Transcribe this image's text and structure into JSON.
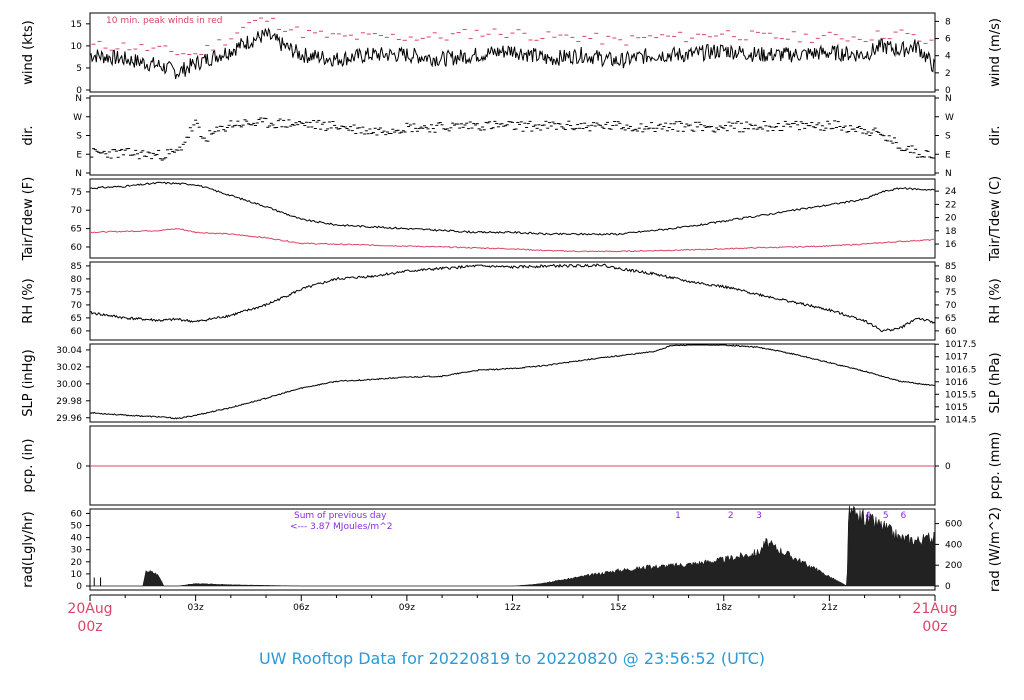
{
  "colors": {
    "line": "#000000",
    "peak": "#dd4466",
    "dew": "#dd4466",
    "date": "#dd4466",
    "footer": "#2b9ad6",
    "annot": "#8a2be2"
  },
  "chart_data": [
    {
      "type": "line",
      "panel": "wind",
      "ylabel": "wind (kts)",
      "ylabel_right": "wind (m/s)",
      "ylim": [
        0,
        17
      ],
      "yticks": [
        0,
        5,
        10,
        15
      ],
      "yticks_right": [
        "0",
        "2",
        "4",
        "6",
        "8"
      ],
      "annotation": "10 min. peak winds in red",
      "series": [
        {
          "name": "wind",
          "color": "line",
          "x": [
            0,
            1,
            2,
            2.5,
            3,
            4,
            4.5,
            5,
            5.5,
            6,
            7,
            8,
            9,
            10,
            11,
            12,
            13,
            14,
            15,
            16,
            17,
            18,
            19,
            20,
            21,
            22,
            22.5,
            23,
            23.5,
            24
          ],
          "y": [
            8,
            7,
            5.5,
            4,
            6,
            9,
            11,
            12.5,
            10,
            8,
            7,
            8,
            8,
            7,
            8,
            9,
            7,
            8,
            6.5,
            8,
            8,
            9,
            8,
            8,
            8.5,
            8,
            10,
            9,
            10,
            5
          ]
        },
        {
          "name": "peak",
          "color": "peak",
          "x": [
            0,
            1,
            2,
            3,
            4,
            4.5,
            5,
            6,
            7,
            8,
            9,
            10,
            11,
            12,
            13,
            14,
            15,
            16,
            17,
            18,
            19,
            20,
            21,
            22,
            23,
            24
          ],
          "y": [
            10,
            10,
            9,
            8,
            12,
            15,
            16,
            13,
            12,
            12,
            12,
            12,
            13,
            13,
            12,
            12,
            11,
            12,
            12,
            13,
            12,
            12,
            12,
            12,
            13,
            10
          ]
        }
      ]
    },
    {
      "type": "scatter",
      "panel": "dir",
      "ylabel": "dir.",
      "ylabel_right": "dir.",
      "yticks": [
        "N",
        "E",
        "S",
        "W",
        "N"
      ],
      "yticks_right": [
        "N",
        "E",
        "S",
        "W",
        "N"
      ],
      "series": [
        {
          "name": "direction (deg)",
          "x": [
            0,
            1,
            2,
            2.5,
            3,
            3.2,
            4,
            5,
            6,
            7,
            8,
            9,
            10,
            11,
            12,
            13,
            14,
            15,
            16,
            17,
            18,
            19,
            20,
            21,
            22,
            22.5,
            23,
            23.5,
            24
          ],
          "y": [
            95,
            95,
            85,
            100,
            240,
            160,
            235,
            240,
            235,
            225,
            200,
            220,
            220,
            230,
            225,
            225,
            225,
            225,
            220,
            225,
            220,
            225,
            225,
            230,
            210,
            180,
            130,
            100,
            90
          ]
        }
      ]
    },
    {
      "type": "line",
      "panel": "temp",
      "ylabel": "Tair/Tdew (F)",
      "ylabel_right": "Tair/Tdew (C)",
      "ylim": [
        57,
        78.5
      ],
      "yticks": [
        60,
        65,
        70,
        75
      ],
      "yticks_right": [
        "16",
        "18",
        "20",
        "22",
        "24"
      ],
      "series": [
        {
          "name": "Tair",
          "color": "line",
          "x": [
            0,
            1,
            2,
            3,
            4,
            5,
            6,
            7,
            8,
            9,
            10,
            11,
            12,
            13,
            14,
            15,
            16,
            17,
            18,
            19,
            20,
            21,
            22,
            22.5,
            23,
            24
          ],
          "y": [
            76,
            76.5,
            77.5,
            77,
            74,
            71,
            67.5,
            66,
            65.5,
            65,
            64.5,
            64,
            64,
            63.5,
            63.5,
            63.5,
            64.5,
            65.5,
            67,
            68.5,
            70,
            71.5,
            73,
            75,
            76,
            75.5
          ]
        },
        {
          "name": "Tdew",
          "color": "dew",
          "x": [
            0,
            2,
            2.5,
            3,
            4,
            5,
            6,
            8,
            10,
            12,
            13,
            14,
            15,
            16,
            17,
            18,
            19,
            20,
            21,
            22,
            23,
            24
          ],
          "y": [
            64,
            64.5,
            65,
            64,
            63.5,
            62.5,
            61,
            60.5,
            60,
            59.5,
            59,
            58.8,
            58.8,
            59,
            59.2,
            59.5,
            59.8,
            60,
            60.3,
            60.8,
            61.5,
            62
          ]
        }
      ]
    },
    {
      "type": "line",
      "panel": "rh",
      "ylabel": "RH (%)",
      "ylabel_right": "RH (%)",
      "ylim": [
        56.5,
        86.5
      ],
      "yticks": [
        60,
        65,
        70,
        75,
        80,
        85
      ],
      "yticks_right": [
        "60",
        "65",
        "70",
        "75",
        "80",
        "85"
      ],
      "series": [
        {
          "name": "RH",
          "x": [
            0,
            1,
            2,
            2.5,
            3,
            4,
            5,
            6,
            7,
            8,
            9,
            10,
            11,
            12,
            13,
            14,
            14.5,
            15,
            16,
            17,
            18,
            19,
            20,
            21,
            22,
            22.5,
            23,
            23.5,
            24
          ],
          "y": [
            67,
            65,
            64,
            64.5,
            63.5,
            66,
            70,
            76,
            80,
            81,
            83,
            84,
            85,
            84.5,
            85,
            85,
            85.5,
            84,
            82,
            79,
            77,
            74,
            71,
            68,
            64,
            60,
            61,
            65,
            63
          ]
        }
      ]
    },
    {
      "type": "line",
      "panel": "slp",
      "ylabel": "SLP (inHg)",
      "ylabel_right": "SLP (hPa)",
      "ylim": [
        29.955,
        30.047
      ],
      "yticks": [
        "29.96",
        "29.98",
        "30.00",
        "30.02",
        "30.04"
      ],
      "yticks_right": [
        "1014.5",
        "1015",
        "1015.5",
        "1016",
        "1016.5",
        "1017",
        "1017.5"
      ],
      "series": [
        {
          "name": "SLP",
          "x": [
            0,
            1,
            2,
            2.5,
            3,
            4,
            5,
            6,
            7,
            8,
            9,
            10,
            11,
            12,
            13,
            14,
            15,
            16,
            16.5,
            17,
            18,
            19,
            20,
            21,
            22,
            23,
            24
          ],
          "y": [
            29.966,
            29.963,
            29.961,
            29.959,
            29.963,
            29.972,
            29.983,
            29.995,
            30.003,
            30.005,
            30.008,
            30.009,
            30.016,
            30.018,
            30.022,
            30.028,
            30.033,
            30.038,
            30.045,
            30.046,
            30.046,
            30.043,
            30.035,
            30.025,
            30.015,
            30.003,
            29.998
          ]
        }
      ]
    },
    {
      "type": "line",
      "panel": "pcp",
      "ylabel": "pcp. (in)",
      "ylabel_right": "pcp. (mm)",
      "yticks": [
        "0"
      ],
      "yticks_right": [
        "0"
      ],
      "series": [
        {
          "name": "precip",
          "color": "dew",
          "x": [
            0,
            24
          ],
          "y": [
            0,
            0
          ]
        }
      ]
    },
    {
      "type": "area",
      "panel": "rad",
      "ylabel": "rad(Lgly/hr)",
      "ylabel_right": "rad (W/m^2)",
      "ylim": [
        0,
        62
      ],
      "yticks": [
        0,
        10,
        20,
        30,
        40,
        50,
        60
      ],
      "yticks_right": [
        "0",
        "200",
        "400",
        "600"
      ],
      "note_line1": "Sum of previous day",
      "note_line2": "<--- 3.87 MJoules/m^2",
      "markers": [
        "1",
        "2",
        "3",
        "4",
        "5",
        "6"
      ],
      "series": [
        {
          "name": "radiation",
          "x": [
            0,
            1.5,
            1.6,
            1.9,
            2.0,
            2.1,
            2.5,
            3,
            4,
            5,
            6,
            7,
            8,
            9,
            10,
            11,
            12,
            12.5,
            13,
            14,
            15,
            16,
            17,
            18,
            19,
            19.2,
            21.5,
            21.55,
            22,
            22.5,
            23,
            23.5,
            24
          ],
          "y": [
            0,
            0,
            13,
            10,
            6,
            0,
            0,
            2,
            1,
            0.5,
            0,
            0,
            0,
            0,
            0,
            0,
            0,
            1,
            3,
            8,
            13,
            16,
            18,
            22,
            28,
            36,
            0,
            60,
            56,
            50,
            40,
            38,
            40
          ]
        }
      ]
    }
  ],
  "x_axis": {
    "ticks": [
      "03z",
      "06z",
      "09z",
      "12z",
      "15z",
      "18z",
      "21z"
    ],
    "start_date": "20Aug",
    "start_time": "00z",
    "end_date": "21Aug",
    "end_time": "00z"
  },
  "footer": "UW Rooftop Data for 20220819  to  20220820 @ 23:56:52  (UTC)"
}
